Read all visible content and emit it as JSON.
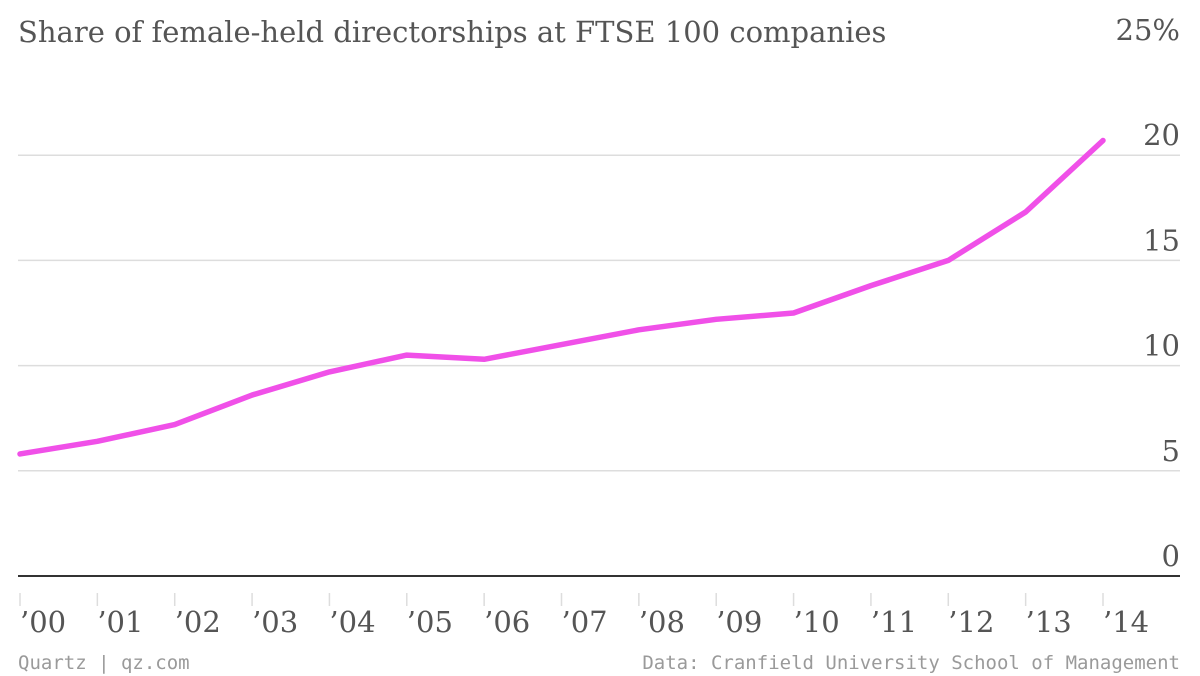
{
  "chart_data": {
    "type": "line",
    "title": "Share of female-held directorships at FTSE 100 companies",
    "x": [
      "2000",
      "2001",
      "2002",
      "2003",
      "2004",
      "2005",
      "2006",
      "2007",
      "2008",
      "2009",
      "2010",
      "2011",
      "2012",
      "2013",
      "2014"
    ],
    "x_tick_labels": [
      "’00",
      "’01",
      "’02",
      "’03",
      "’04",
      "’05",
      "’06",
      "’07",
      "’08",
      "’09",
      "’10",
      "’11",
      "’12",
      "’13",
      "’14"
    ],
    "series": [
      {
        "values": [
          5.8,
          6.4,
          7.2,
          8.6,
          9.7,
          10.5,
          10.3,
          11.0,
          11.7,
          12.2,
          12.5,
          13.8,
          15.0,
          17.3,
          20.7
        ],
        "color": "#f050e8"
      }
    ],
    "ylim": [
      0,
      25
    ],
    "y_ticks": [
      {
        "value": 0,
        "label": "0"
      },
      {
        "value": 5,
        "label": "5"
      },
      {
        "value": 10,
        "label": "10"
      },
      {
        "value": 15,
        "label": "15"
      },
      {
        "value": 20,
        "label": "20"
      },
      {
        "value": 25,
        "label": "25%"
      }
    ],
    "grid": true,
    "xlabel": "",
    "ylabel": ""
  },
  "footer": {
    "source_left": "Quartz | qz.com",
    "source_right": "Data: Cranfield University School of Management"
  },
  "colors": {
    "line": "#f050e8",
    "grid": "#dddddd",
    "axis": "#333333",
    "text": "#555555",
    "footer": "#9a9a9a"
  }
}
